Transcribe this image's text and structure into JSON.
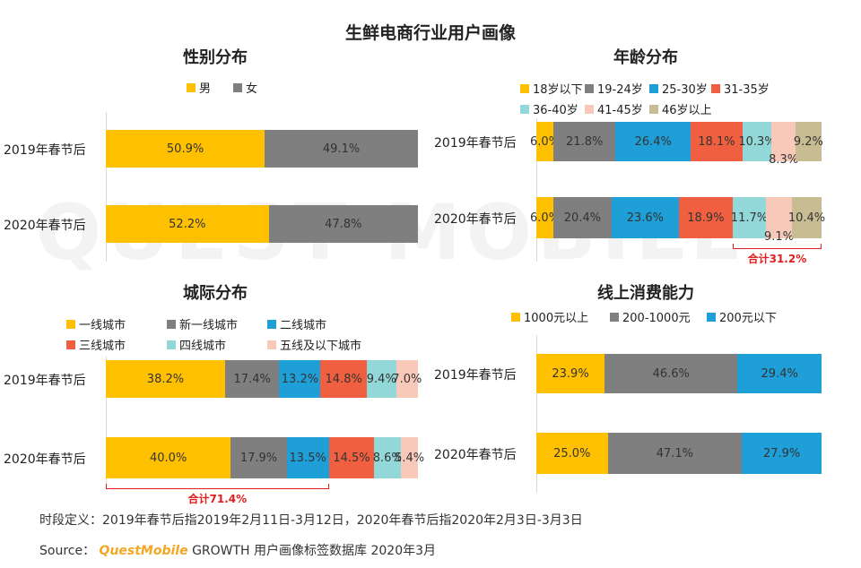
{
  "main_title": "生鲜电商行业用户画像",
  "watermark": "QUEST MOBILE",
  "footnote": "时段定义：2019年春节后指2019年2月11日-3月12日，2020年春节后指2020年2月3日-3月3日",
  "source": {
    "label": "Source：",
    "brand": "QuestMobile",
    "rest": "GROWTH 用户画像标签数据库 2020年3月",
    "brand_color": "#f5a623"
  },
  "chart_data": [
    {
      "type": "bar",
      "orientation": "horizontal-stacked",
      "title": "性别分布",
      "categories": [
        "2019年春节后",
        "2020年春节后"
      ],
      "series": [
        {
          "name": "男",
          "color": "#ffc000",
          "values": [
            50.9,
            52.2
          ],
          "labels": [
            "50.9%",
            "52.2%"
          ]
        },
        {
          "name": "女",
          "color": "#7f7f7f",
          "values": [
            49.1,
            47.8
          ],
          "labels": [
            "49.1%",
            "47.8%"
          ]
        }
      ]
    },
    {
      "type": "bar",
      "orientation": "horizontal-stacked",
      "title": "年龄分布",
      "categories": [
        "2019年春节后",
        "2020年春节后"
      ],
      "series": [
        {
          "name": "18岁以下",
          "color": "#ffc000",
          "values": [
            6.0,
            6.0
          ],
          "labels": [
            "6.0%",
            "6.0%"
          ]
        },
        {
          "name": "19-24岁",
          "color": "#7f7f7f",
          "values": [
            21.8,
            20.4
          ],
          "labels": [
            "21.8%",
            "20.4%"
          ]
        },
        {
          "name": "25-30岁",
          "color": "#1e9fd8",
          "values": [
            26.4,
            23.6
          ],
          "labels": [
            "26.4%",
            "23.6%"
          ]
        },
        {
          "name": "31-35岁",
          "color": "#f06040",
          "values": [
            18.1,
            18.9
          ],
          "labels": [
            "18.1%",
            "18.9%"
          ]
        },
        {
          "name": "36-40岁",
          "color": "#92d8d8",
          "values": [
            10.3,
            11.7
          ],
          "labels": [
            "10.3%",
            "11.7%"
          ]
        },
        {
          "name": "41-45岁",
          "color": "#f8c8b8",
          "values": [
            8.3,
            9.1
          ],
          "labels": [
            "8.3%",
            "9.1%"
          ]
        },
        {
          "name": "46岁以上",
          "color": "#c8bc92",
          "values": [
            9.2,
            10.4
          ],
          "labels": [
            "9.2%",
            "10.4%"
          ]
        }
      ],
      "annotation": {
        "text": "合计31.2%",
        "row": 1,
        "from_series": 4,
        "to_series": 6
      }
    },
    {
      "type": "bar",
      "orientation": "horizontal-stacked",
      "title": "城际分布",
      "categories": [
        "2019年春节后",
        "2020年春节后"
      ],
      "series": [
        {
          "name": "一线城市",
          "color": "#ffc000",
          "values": [
            38.2,
            40.0
          ],
          "labels": [
            "38.2%",
            "40.0%"
          ]
        },
        {
          "name": "新一线城市",
          "color": "#7f7f7f",
          "values": [
            17.4,
            17.9
          ],
          "labels": [
            "17.4%",
            "17.9%"
          ]
        },
        {
          "name": "二线城市",
          "color": "#1e9fd8",
          "values": [
            13.2,
            13.5
          ],
          "labels": [
            "13.2%",
            "13.5%"
          ]
        },
        {
          "name": "三线城市",
          "color": "#f06040",
          "values": [
            14.8,
            14.5
          ],
          "labels": [
            "14.8%",
            "14.5%"
          ]
        },
        {
          "name": "四线城市",
          "color": "#92d8d8",
          "values": [
            9.4,
            8.6
          ],
          "labels": [
            "9.4%",
            "8.6%"
          ]
        },
        {
          "name": "五线及以下城市",
          "color": "#f8c8b8",
          "values": [
            7.0,
            5.4
          ],
          "labels": [
            "7.0%",
            "5.4%"
          ]
        }
      ],
      "annotation": {
        "text": "合计71.4%",
        "row": 1,
        "from_series": 0,
        "to_series": 2
      }
    },
    {
      "type": "bar",
      "orientation": "horizontal-stacked",
      "title": "线上消费能力",
      "categories": [
        "2019年春节后",
        "2020年春节后"
      ],
      "series": [
        {
          "name": "1000元以上",
          "color": "#ffc000",
          "values": [
            23.9,
            25.0
          ],
          "labels": [
            "23.9%",
            "25.0%"
          ]
        },
        {
          "name": "200-1000元",
          "color": "#7f7f7f",
          "values": [
            46.6,
            47.1
          ],
          "labels": [
            "46.6%",
            "47.1%"
          ]
        },
        {
          "name": "200元以下",
          "color": "#1e9fd8",
          "values": [
            29.4,
            27.9
          ],
          "labels": [
            "29.4%",
            "27.9%"
          ]
        }
      ]
    }
  ]
}
